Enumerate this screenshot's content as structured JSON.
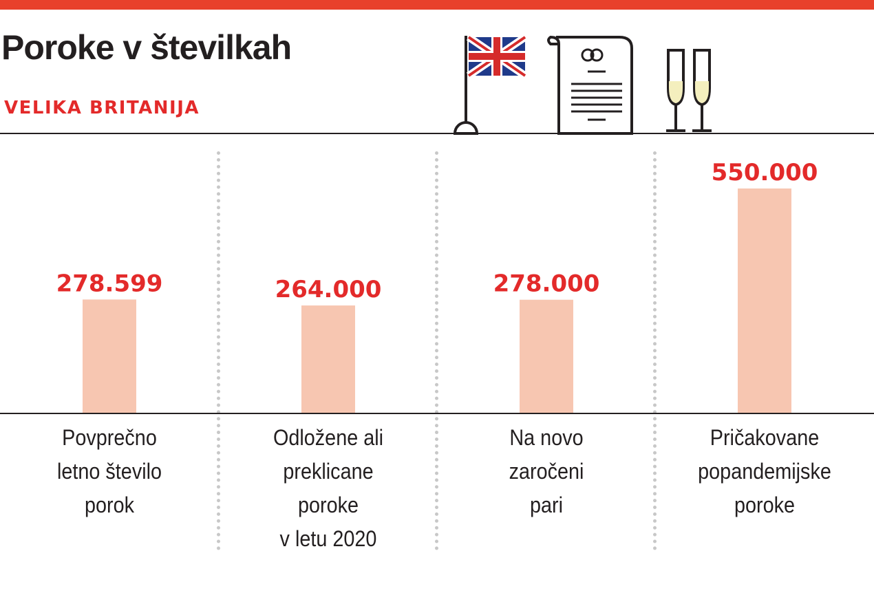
{
  "header": {
    "title": "Poroke v številkah",
    "subtitle": "VELIKA BRITANIJA"
  },
  "icons": [
    "uk-flag-icon",
    "marriage-certificate-icon",
    "champagne-glasses-icon"
  ],
  "colors": {
    "accent_bar": "#e8412b",
    "value_text": "#e32a2a",
    "bar_fill": "#f7c6b1",
    "text": "#231f20",
    "divider": "#c8c8c8"
  },
  "chart_data": {
    "type": "bar",
    "title": "Poroke v številkah",
    "subtitle": "VELIKA BRITANIJA",
    "categories": [
      "Povprečno letno število porok",
      "Odložene ali preklicane poroke v letu 2020",
      "Na novo zaročeni pari",
      "Pričakovane popandemijske poroke"
    ],
    "category_lines": [
      [
        "Povprečno",
        "letno število",
        "porok"
      ],
      [
        "Odložene ali",
        "preklicane",
        "poroke",
        "v letu 2020"
      ],
      [
        "Na novo",
        "zaročeni",
        "pari"
      ],
      [
        "Pričakovane",
        "popandemijske",
        "poroke"
      ]
    ],
    "values": [
      278599,
      264000,
      278000,
      550000
    ],
    "value_labels": [
      "278.599",
      "264.000",
      "278.000",
      "550.000"
    ],
    "ylim": [
      0,
      600000
    ],
    "grid": false,
    "legend": "none"
  }
}
